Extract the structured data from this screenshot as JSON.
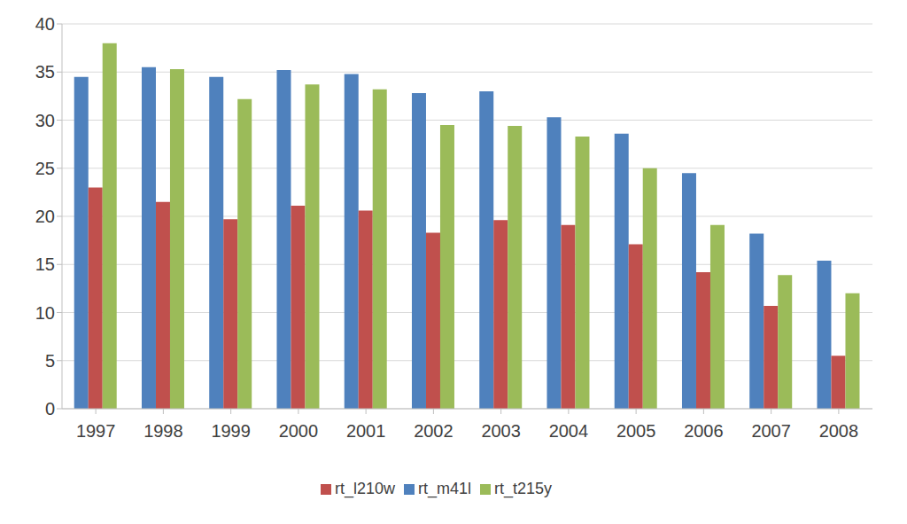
{
  "chart_data": {
    "type": "bar",
    "categories": [
      "1997",
      "1998",
      "1999",
      "2000",
      "2001",
      "2002",
      "2003",
      "2004",
      "2005",
      "2006",
      "2007",
      "2008"
    ],
    "series": [
      {
        "name": "rt_m41l",
        "color": "#4f81bd",
        "values": [
          34.5,
          35.5,
          34.5,
          35.2,
          34.8,
          32.8,
          33,
          30.3,
          28.6,
          24.5,
          18.2,
          15.4
        ]
      },
      {
        "name": "rt_l210w",
        "color": "#c0504d",
        "values": [
          23,
          21.5,
          19.7,
          21.1,
          20.6,
          18.3,
          19.6,
          19.1,
          17.1,
          14.2,
          10.7,
          5.5
        ]
      },
      {
        "name": "rt_t215y",
        "color": "#9bbb59",
        "values": [
          38,
          35.3,
          32.2,
          33.7,
          33.2,
          29.5,
          29.4,
          28.3,
          25,
          19.1,
          13.9,
          12
        ]
      }
    ],
    "ylim": [
      0,
      40
    ],
    "yticks": [
      0,
      5,
      10,
      15,
      20,
      25,
      30,
      35,
      40
    ],
    "grid": true,
    "legend": "bottom"
  }
}
